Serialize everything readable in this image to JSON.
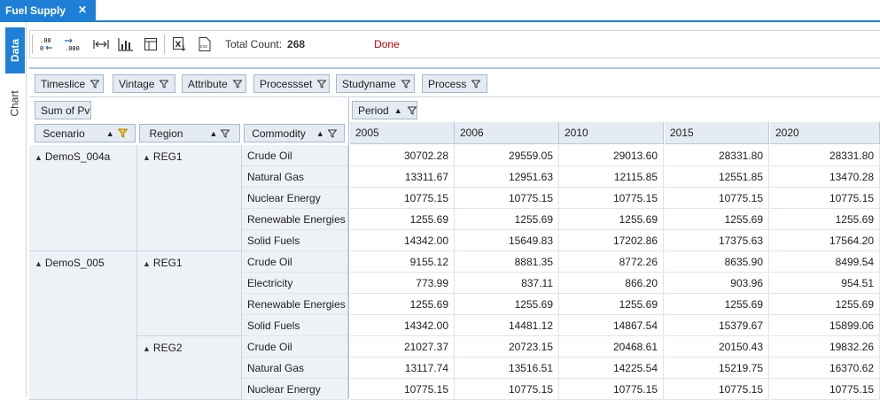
{
  "tab": {
    "title": "Fuel Supply",
    "close_glyph": "✕"
  },
  "side_tabs": {
    "data": "Data",
    "chart": "Chart"
  },
  "toolbar": {
    "icons": [
      "decimal-decrease-icon",
      "decimal-increase-icon",
      "fit-columns-icon",
      "chart-icon",
      "layout-icon",
      "export-excel-icon",
      "export-csv-icon"
    ],
    "count_label": "Total Count:",
    "count_value": "268",
    "status": "Done"
  },
  "filters": [
    "Timeslice",
    "Vintage",
    "Attribute",
    "Processset",
    "Studyname",
    "Process"
  ],
  "data_field": "Sum of Pv",
  "column_field": "Period",
  "row_fields": [
    "Scenario",
    "Region",
    "Commodity"
  ],
  "periods": [
    "2005",
    "2006",
    "2010",
    "2015",
    "2020"
  ],
  "groups": [
    {
      "scenario": "DemoS_004a",
      "region": "REG1",
      "start": 0,
      "rows": 5
    },
    {
      "scenario": "DemoS_005",
      "region": "REG1",
      "start": 5,
      "rows": 4
    },
    {
      "scenario": "",
      "region": "REG2",
      "start": 9,
      "rows": 3
    }
  ],
  "rows": [
    {
      "commodity": "Crude Oil",
      "values": [
        "30702.28",
        "29559.05",
        "29013.60",
        "28331.80",
        "28331.80"
      ]
    },
    {
      "commodity": "Natural Gas",
      "values": [
        "13311.67",
        "12951.63",
        "12115.85",
        "12551.85",
        "13470.28"
      ]
    },
    {
      "commodity": "Nuclear Energy",
      "values": [
        "10775.15",
        "10775.15",
        "10775.15",
        "10775.15",
        "10775.15"
      ]
    },
    {
      "commodity": "Renewable Energies",
      "values": [
        "1255.69",
        "1255.69",
        "1255.69",
        "1255.69",
        "1255.69"
      ]
    },
    {
      "commodity": "Solid Fuels",
      "values": [
        "14342.00",
        "15649.83",
        "17202.86",
        "17375.63",
        "17564.20"
      ]
    },
    {
      "commodity": "Crude Oil",
      "values": [
        "9155.12",
        "8881.35",
        "8772.26",
        "8635.90",
        "8499.54"
      ]
    },
    {
      "commodity": "Electricity",
      "values": [
        "773.99",
        "837.11",
        "866.20",
        "903.96",
        "954.51"
      ]
    },
    {
      "commodity": "Renewable Energies",
      "values": [
        "1255.69",
        "1255.69",
        "1255.69",
        "1255.69",
        "1255.69"
      ]
    },
    {
      "commodity": "Solid Fuels",
      "values": [
        "14342.00",
        "14481.12",
        "14867.54",
        "15379.67",
        "15899.06"
      ]
    },
    {
      "commodity": "Crude Oil",
      "values": [
        "21027.37",
        "20723.15",
        "20468.61",
        "20150.43",
        "19832.26"
      ]
    },
    {
      "commodity": "Natural Gas",
      "values": [
        "13117.74",
        "13516.51",
        "14225.54",
        "15219.75",
        "16370.62"
      ]
    },
    {
      "commodity": "Nuclear Energy",
      "values": [
        "10775.15",
        "10775.15",
        "10775.15",
        "10775.15",
        "10775.15"
      ]
    }
  ],
  "colors": {
    "accent": "#1e7fd6",
    "header_bg": "#e4ebf3",
    "status": "#c00000"
  }
}
